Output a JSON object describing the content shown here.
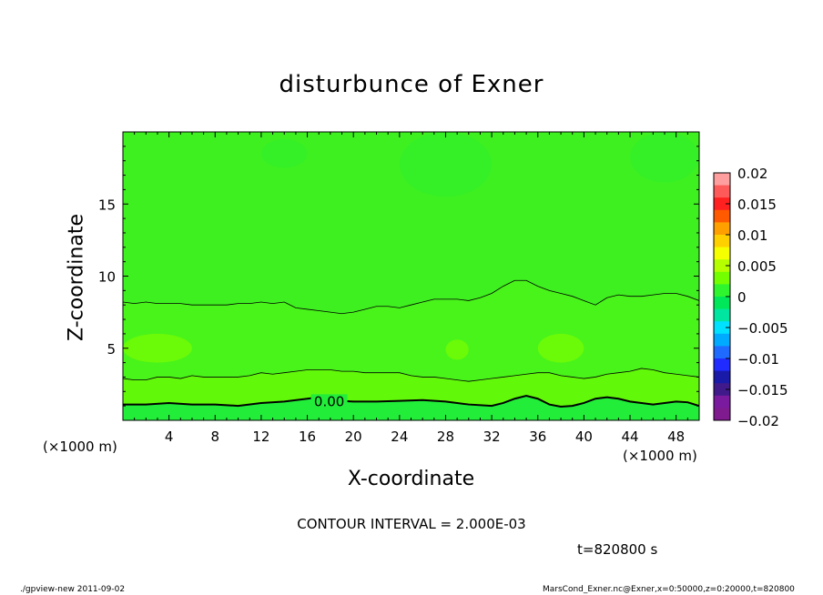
{
  "page": {
    "title": "disturbunce of Exner",
    "xlabel": "X-coordinate",
    "ylabel": "Z-coordinate",
    "x_unit_left": "(×1000 m)",
    "x_unit_right": "(×1000 m)",
    "contour_interval": "CONTOUR INTERVAL = 2.000E-03",
    "time": "t=820800 s",
    "footer_left": "./gpview-new  2011-09-02",
    "footer_right": "MarsCond_Exner.nc@Exner,x=0:50000,z=0:20000,t=820800"
  },
  "chart_data": {
    "type": "heatmap",
    "title": "disturbunce of Exner",
    "xlabel": "X-coordinate",
    "ylabel": "Z-coordinate",
    "xlim": [
      0,
      50
    ],
    "ylim": [
      0,
      20
    ],
    "x_ticks": [
      4,
      8,
      12,
      16,
      20,
      24,
      28,
      32,
      36,
      40,
      44,
      48
    ],
    "y_ticks": [
      5,
      10,
      15
    ],
    "contour_interval": 0.002,
    "contour_label": "0.00",
    "contour_label_position": {
      "x": 17.9,
      "z": 1.3
    },
    "contours": [
      {
        "level": 0,
        "points": [
          [
            0,
            1.1
          ],
          [
            2,
            1.1
          ],
          [
            4,
            1.2
          ],
          [
            6,
            1.1
          ],
          [
            8,
            1.1
          ],
          [
            10,
            1.0
          ],
          [
            12,
            1.2
          ],
          [
            14,
            1.3
          ],
          [
            16,
            1.5
          ],
          [
            17,
            1.6
          ],
          [
            18,
            1.4
          ],
          [
            20,
            1.3
          ],
          [
            22,
            1.3
          ],
          [
            24,
            1.35
          ],
          [
            26,
            1.4
          ],
          [
            28,
            1.3
          ],
          [
            30,
            1.1
          ],
          [
            32,
            1.0
          ],
          [
            33,
            1.2
          ],
          [
            34,
            1.5
          ],
          [
            35,
            1.7
          ],
          [
            36,
            1.5
          ],
          [
            37,
            1.1
          ],
          [
            38,
            0.95
          ],
          [
            39,
            1.0
          ],
          [
            40,
            1.2
          ],
          [
            41,
            1.5
          ],
          [
            42,
            1.6
          ],
          [
            43,
            1.5
          ],
          [
            44,
            1.3
          ],
          [
            45,
            1.2
          ],
          [
            46,
            1.1
          ],
          [
            47,
            1.2
          ],
          [
            48,
            1.3
          ],
          [
            49,
            1.25
          ],
          [
            50,
            1.0
          ]
        ]
      },
      {
        "level": 0.002,
        "points": [
          [
            0,
            2.9
          ],
          [
            1,
            2.8
          ],
          [
            2,
            2.8
          ],
          [
            3,
            3.0
          ],
          [
            4,
            3.0
          ],
          [
            5,
            2.9
          ],
          [
            6,
            3.1
          ],
          [
            7,
            3.0
          ],
          [
            8,
            3.0
          ],
          [
            9,
            3.0
          ],
          [
            10,
            3.0
          ],
          [
            11,
            3.1
          ],
          [
            12,
            3.3
          ],
          [
            13,
            3.2
          ],
          [
            14,
            3.3
          ],
          [
            15,
            3.4
          ],
          [
            16,
            3.5
          ],
          [
            17,
            3.5
          ],
          [
            18,
            3.5
          ],
          [
            19,
            3.4
          ],
          [
            20,
            3.4
          ],
          [
            21,
            3.3
          ],
          [
            22,
            3.3
          ],
          [
            23,
            3.3
          ],
          [
            24,
            3.3
          ],
          [
            25,
            3.1
          ],
          [
            26,
            3.0
          ],
          [
            27,
            3.0
          ],
          [
            28,
            2.9
          ],
          [
            29,
            2.8
          ],
          [
            30,
            2.7
          ],
          [
            31,
            2.8
          ],
          [
            32,
            2.9
          ],
          [
            33,
            3.0
          ],
          [
            34,
            3.1
          ],
          [
            35,
            3.2
          ],
          [
            36,
            3.3
          ],
          [
            37,
            3.3
          ],
          [
            38,
            3.1
          ],
          [
            39,
            3.0
          ],
          [
            40,
            2.9
          ],
          [
            41,
            3.0
          ],
          [
            42,
            3.2
          ],
          [
            43,
            3.3
          ],
          [
            44,
            3.4
          ],
          [
            45,
            3.6
          ],
          [
            46,
            3.5
          ],
          [
            47,
            3.3
          ],
          [
            48,
            3.2
          ],
          [
            49,
            3.1
          ],
          [
            50,
            3.0
          ]
        ]
      },
      {
        "level": 0.004,
        "points": [
          [
            0,
            8.2
          ],
          [
            1,
            8.1
          ],
          [
            2,
            8.2
          ],
          [
            3,
            8.1
          ],
          [
            4,
            8.1
          ],
          [
            5,
            8.1
          ],
          [
            6,
            8.0
          ],
          [
            7,
            8.0
          ],
          [
            8,
            8.0
          ],
          [
            9,
            8.0
          ],
          [
            10,
            8.1
          ],
          [
            11,
            8.1
          ],
          [
            12,
            8.2
          ],
          [
            13,
            8.1
          ],
          [
            14,
            8.2
          ],
          [
            15,
            7.8
          ],
          [
            16,
            7.7
          ],
          [
            17,
            7.6
          ],
          [
            18,
            7.5
          ],
          [
            19,
            7.4
          ],
          [
            20,
            7.5
          ],
          [
            21,
            7.7
          ],
          [
            22,
            7.9
          ],
          [
            23,
            7.9
          ],
          [
            24,
            7.8
          ],
          [
            25,
            8.0
          ],
          [
            26,
            8.2
          ],
          [
            27,
            8.4
          ],
          [
            28,
            8.4
          ],
          [
            29,
            8.4
          ],
          [
            30,
            8.3
          ],
          [
            31,
            8.5
          ],
          [
            32,
            8.8
          ],
          [
            33,
            9.3
          ],
          [
            34,
            9.7
          ],
          [
            35,
            9.7
          ],
          [
            36,
            9.3
          ],
          [
            37,
            9.0
          ],
          [
            38,
            8.8
          ],
          [
            39,
            8.6
          ],
          [
            40,
            8.3
          ],
          [
            41,
            8.0
          ],
          [
            42,
            8.5
          ],
          [
            43,
            8.7
          ],
          [
            44,
            8.6
          ],
          [
            45,
            8.6
          ],
          [
            46,
            8.7
          ],
          [
            47,
            8.8
          ],
          [
            48,
            8.8
          ],
          [
            49,
            8.6
          ],
          [
            50,
            8.3
          ]
        ]
      }
    ],
    "shaded_patches": [
      {
        "x_range": [
          12,
          16
        ],
        "z_range": [
          17.5,
          19.5
        ]
      },
      {
        "x_range": [
          24,
          32
        ],
        "z_range": [
          15.5,
          20
        ]
      },
      {
        "x_range": [
          44,
          50
        ],
        "z_range": [
          16.5,
          20
        ]
      },
      {
        "x_range": [
          0,
          6
        ],
        "z_range": [
          4,
          6
        ]
      },
      {
        "x_range": [
          28,
          30
        ],
        "z_range": [
          4.2,
          5.6
        ]
      },
      {
        "x_range": [
          36,
          40
        ],
        "z_range": [
          4.0,
          6.0
        ]
      }
    ],
    "field_values_note": "",
    "colorbar": {
      "min": -0.02,
      "max": 0.02,
      "tick_labels": [
        "0.02",
        "0.015",
        "0.01",
        "0.005",
        "0",
        "−0.005",
        "−0.01",
        "−0.015",
        "−0.02"
      ],
      "colors": [
        "#ff9e9e",
        "#ff5a5a",
        "#ff2020",
        "#ff5a00",
        "#ff9f00",
        "#ffd000",
        "#f6ff00",
        "#b5ff00",
        "#73ff00",
        "#2ef52e",
        "#00e85a",
        "#00e6a0",
        "#00e0ff",
        "#00aaff",
        "#1f6aff",
        "#1f2bff",
        "#1a1aa8",
        "#401a8a",
        "#7a1a9e",
        "#7f1a8f"
      ]
    }
  }
}
